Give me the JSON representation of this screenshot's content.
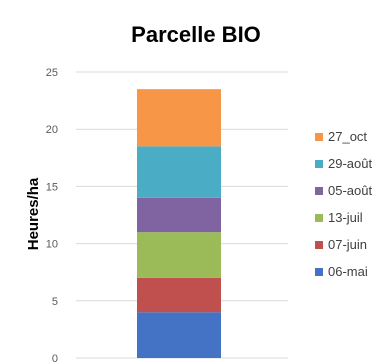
{
  "chart_data": {
    "type": "bar",
    "stacked": true,
    "title": "Parcelle BIO",
    "xlabel": "",
    "ylabel": "Heures/ha",
    "ylim": [
      0,
      25
    ],
    "yticks": [
      0,
      5,
      10,
      15,
      20,
      25
    ],
    "grid": true,
    "legend_position": "right",
    "categories": [
      ""
    ],
    "series": [
      {
        "name": "06-mai",
        "values": [
          4.0
        ],
        "color": "#4472c4"
      },
      {
        "name": "07-juin",
        "values": [
          3.0
        ],
        "color": "#c0504d"
      },
      {
        "name": "13-juil",
        "values": [
          4.0
        ],
        "color": "#9bbb59"
      },
      {
        "name": "05-août",
        "values": [
          3.0
        ],
        "color": "#8064a2"
      },
      {
        "name": "29-août",
        "values": [
          4.5
        ],
        "color": "#4bacc6"
      },
      {
        "name": "27_oct",
        "values": [
          5.0
        ],
        "color": "#f79646"
      }
    ]
  }
}
